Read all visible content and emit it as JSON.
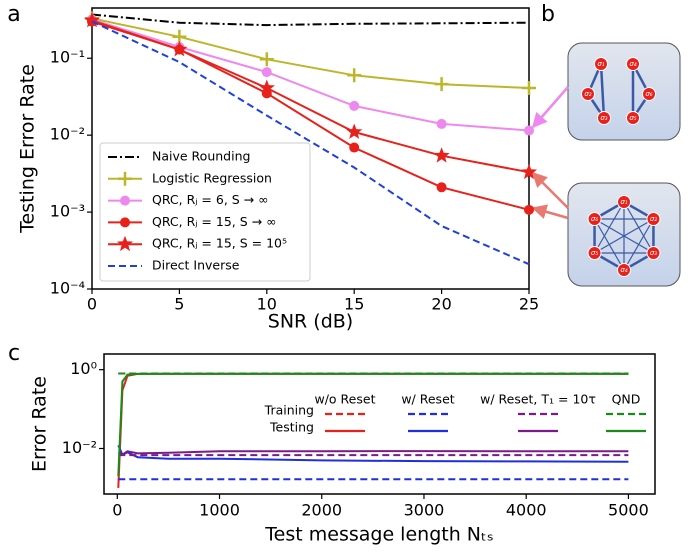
{
  "chart_data": [
    {
      "type": "line",
      "panel": "a",
      "xlabel": "SNR (dB)",
      "ylabel": "Testing Error Rate",
      "ylog": true,
      "xlim": [
        0,
        25
      ],
      "ylim": [
        0.0001,
        0.45
      ],
      "xticks": [
        0,
        5,
        10,
        15,
        20,
        25
      ],
      "yticks": [
        {
          "value": 0.0001,
          "label": "10⁻⁴"
        },
        {
          "value": 0.001,
          "label": "10⁻³"
        },
        {
          "value": 0.01,
          "label": "10⁻²"
        },
        {
          "value": 0.1,
          "label": "10⁻¹"
        }
      ],
      "x": [
        0,
        5,
        10,
        15,
        20,
        25
      ],
      "series": [
        {
          "name": "Naive Rounding",
          "color": "#000000",
          "dash": "dashdot",
          "marker": "none",
          "values": [
            0.37,
            0.29,
            0.27,
            0.28,
            0.285,
            0.29
          ]
        },
        {
          "name": "Logistic Regression",
          "color": "#bdb62a",
          "dash": "solid",
          "marker": "plus",
          "values": [
            0.33,
            0.19,
            0.097,
            0.06,
            0.046,
            0.041
          ]
        },
        {
          "name": "QRC, Rⱼ = 6, S → ∞",
          "color": "#ee88ee",
          "dash": "solid",
          "marker": "circle",
          "values": [
            0.32,
            0.14,
            0.066,
            0.024,
            0.014,
            0.0115
          ]
        },
        {
          "name": "QRC, Rⱼ = 15, S → ∞",
          "color": "#e8211b",
          "dash": "solid",
          "marker": "circle",
          "values": [
            0.3,
            0.13,
            0.035,
            0.0069,
            0.0021,
            0.00107
          ]
        },
        {
          "name": "QRC, Rⱼ = 15, S = 10⁵",
          "color": "#e8211b",
          "dash": "solid",
          "marker": "star",
          "values": [
            0.31,
            0.13,
            0.041,
            0.011,
            0.0054,
            0.0033
          ]
        },
        {
          "name": "Direct Inverse",
          "color": "#1f3fe0",
          "dash": "dashed",
          "marker": "none",
          "values": [
            0.3,
            0.089,
            0.018,
            0.0038,
            0.00066,
            0.00021
          ]
        }
      ]
    },
    {
      "type": "line",
      "panel": "c",
      "xlabel": "Test message length Nₜₛ",
      "ylabel": "Error Rate",
      "ylog": true,
      "xlim": [
        -130,
        5260
      ],
      "ylim": [
        0.0007,
        2.5
      ],
      "xticks": [
        0,
        1000,
        2000,
        3000,
        4000,
        5000
      ],
      "yticks": [
        {
          "value": 0.01,
          "label": "10⁻²"
        },
        {
          "value": 1,
          "label": "10⁰"
        }
      ],
      "x": [
        10,
        50,
        100,
        200,
        500,
        1000,
        2000,
        3000,
        4000,
        5000
      ],
      "rows": [
        "Training",
        "Testing"
      ],
      "groups": [
        {
          "label": "w/o Reset",
          "color": "#e8211b",
          "training": [
            0.8,
            0.8,
            0.8,
            0.8,
            0.8,
            0.8,
            0.8,
            0.8,
            0.8,
            0.8
          ],
          "testing": [
            0.001,
            0.3,
            0.7,
            0.78,
            0.79,
            0.79,
            0.79,
            0.79,
            0.79,
            0.79
          ]
        },
        {
          "label": "w/ Reset",
          "color": "#1f2fe0",
          "training": [
            0.00165,
            0.00165,
            0.00165,
            0.00165,
            0.00165,
            0.00165,
            0.00165,
            0.00165,
            0.00165,
            0.00165
          ],
          "testing": [
            0.012,
            0.007,
            0.008,
            0.006,
            0.0055,
            0.0055,
            0.005,
            0.0048,
            0.0047,
            0.0046
          ]
        },
        {
          "label": "w/ Reset, T₁ = 10τ",
          "color": "#7b1a8a",
          "training": [
            0.0068,
            0.0068,
            0.0068,
            0.0068,
            0.0068,
            0.0068,
            0.0068,
            0.0068,
            0.0068,
            0.0068
          ],
          "testing": [
            0.008,
            0.007,
            0.0085,
            0.0075,
            0.0078,
            0.0085,
            0.0085,
            0.0086,
            0.0085,
            0.0085
          ]
        },
        {
          "label": "QND",
          "color": "#1a8a1a",
          "training": [
            0.8,
            0.8,
            0.8,
            0.8,
            0.8,
            0.8,
            0.8,
            0.8,
            0.8,
            0.8
          ],
          "testing": [
            0.002,
            0.5,
            0.75,
            0.78,
            0.78,
            0.78,
            0.78,
            0.78,
            0.78,
            0.78
          ]
        }
      ]
    }
  ],
  "diagram": {
    "panel": "b",
    "graphs": [
      {
        "nodes": [
          "σ₁",
          "σ₂",
          "σ₃",
          "σ₄",
          "σ₅",
          "σ₆"
        ]
      },
      {
        "nodes": [
          "σ₁",
          "σ₂",
          "σ₃",
          "σ₄",
          "σ₅",
          "σ₆"
        ]
      }
    ]
  }
}
